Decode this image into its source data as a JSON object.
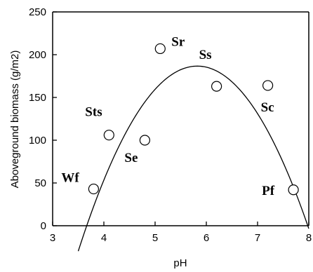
{
  "chart_data": {
    "type": "scatter",
    "title": "",
    "xlabel": "pH",
    "ylabel": "Aboveground biomass (g/m2)",
    "xlim": [
      3,
      8
    ],
    "ylim": [
      0,
      250
    ],
    "xticks": [
      "3",
      "4",
      "5",
      "6",
      "7",
      "8"
    ],
    "yticks": [
      "0",
      "50",
      "100",
      "150",
      "200",
      "250"
    ],
    "grid": false,
    "legend": "none",
    "points": [
      {
        "label": "Wf",
        "x": 3.8,
        "y": 43
      },
      {
        "label": "Sts",
        "x": 4.1,
        "y": 106
      },
      {
        "label": "Se",
        "x": 4.8,
        "y": 100
      },
      {
        "label": "Sr",
        "x": 5.1,
        "y": 207
      },
      {
        "label": "Ss",
        "x": 6.2,
        "y": 163
      },
      {
        "label": "Sc",
        "x": 7.2,
        "y": 164
      },
      {
        "label": "Pf",
        "x": 7.7,
        "y": 42
      }
    ],
    "fit_curve": {
      "type": "quadratic",
      "a": -40.1,
      "b": 467,
      "c": -1173,
      "x_range": [
        3.5,
        8.0
      ]
    }
  }
}
